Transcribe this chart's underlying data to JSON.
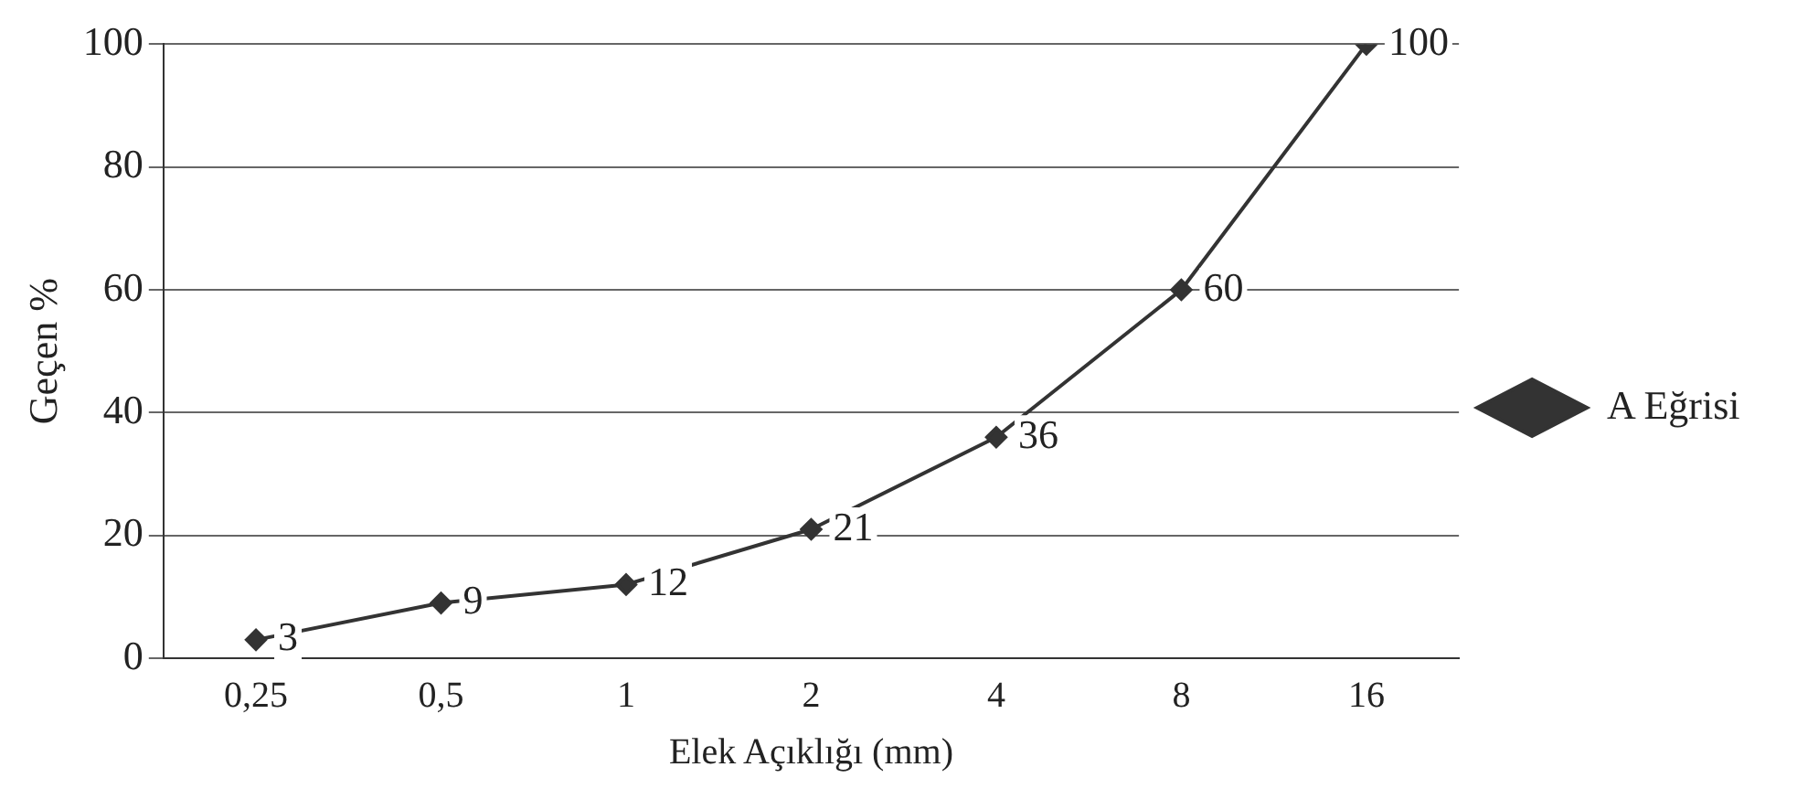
{
  "chart_data": {
    "type": "line",
    "xlabel": "Elek Açıklığı (mm)",
    "ylabel": "Geçen %",
    "categories": [
      "0,25",
      "0,5",
      "1",
      "2",
      "4",
      "8",
      "16"
    ],
    "series": [
      {
        "name": "A Eğrisi",
        "color": "#333333",
        "values": [
          3,
          9,
          12,
          21,
          36,
          60,
          100
        ]
      }
    ],
    "ylim": [
      0,
      100
    ],
    "yticks": [
      0,
      20,
      40,
      60,
      80,
      100
    ],
    "grid": "y",
    "legend": "right",
    "marker": "diamond",
    "line_style": "solid",
    "data_labels": true
  }
}
